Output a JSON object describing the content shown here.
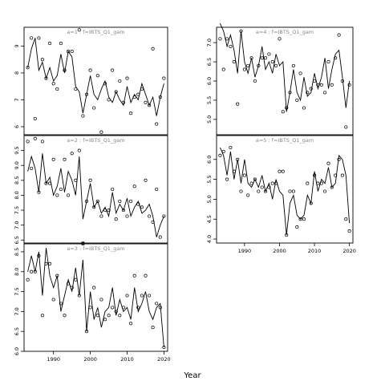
{
  "figure": {
    "xlabel": "Year"
  },
  "chart_data": [
    {
      "type": "line",
      "title": "a=1 : f=IBTS_Q1_gam",
      "xlim": [
        1982,
        2021
      ],
      "ylim": [
        5.7,
        9.7
      ],
      "yticks": [
        6,
        7,
        8,
        9
      ],
      "x": [
        1983,
        1984,
        1985,
        1986,
        1987,
        1988,
        1989,
        1990,
        1991,
        1992,
        1993,
        1994,
        1995,
        1996,
        1997,
        1998,
        1999,
        2000,
        2001,
        2002,
        2003,
        2004,
        2005,
        2006,
        2007,
        2008,
        2009,
        2010,
        2011,
        2012,
        2013,
        2014,
        2015,
        2016,
        2017,
        2018,
        2019,
        2020
      ],
      "series": [
        {
          "values": [
            8.2,
            8.9,
            9.3,
            8.1,
            8.4,
            7.8,
            8.2,
            7.7,
            7.9,
            8.7,
            8.0,
            8.8,
            8.6,
            7.5,
            7.3,
            6.5,
            7.2,
            7.9,
            7.2,
            7.0,
            7.4,
            7.7,
            7.1,
            6.9,
            7.3,
            7.0,
            6.8,
            7.5,
            6.9,
            7.2,
            7.0,
            7.6,
            7.2,
            6.8,
            7.1,
            6.4,
            7.1,
            7.6
          ]
        },
        {
          "values": [
            8.2,
            9.3,
            6.3,
            9.3,
            8.5,
            7.8,
            9.1,
            7.6,
            7.4,
            9.1,
            8.1,
            8.8,
            8.8,
            7.4,
            9.6,
            6.4,
            7.2,
            8.1,
            6.7,
            7.9,
            5.8,
            7.6,
            7.0,
            8.1,
            7.3,
            7.7,
            6.9,
            7.8,
            6.5,
            7.1,
            7.2,
            7.4,
            6.9,
            6.8,
            8.9,
            6.1,
            7.1,
            7.8
          ]
        }
      ],
      "grid": false
    },
    {
      "type": "line",
      "title": "a=2 : f=IBTS_Q1_gam",
      "xlim": [
        1982,
        2021
      ],
      "ylim": [
        6.4,
        10.0
      ],
      "yticks": [
        6.5,
        7.0,
        7.5,
        8.0,
        8.5,
        9.0,
        9.5
      ],
      "x": [
        1983,
        1984,
        1985,
        1986,
        1987,
        1988,
        1989,
        1990,
        1991,
        1992,
        1993,
        1994,
        1995,
        1996,
        1997,
        1998,
        1999,
        2000,
        2001,
        2002,
        2003,
        2004,
        2005,
        2006,
        2007,
        2008,
        2009,
        2010,
        2011,
        2012,
        2013,
        2014,
        2015,
        2016,
        2017,
        2018,
        2019,
        2020
      ],
      "series": [
        {
          "values": [
            8.8,
            9.3,
            8.9,
            8.1,
            9.4,
            8.4,
            8.6,
            8.0,
            8.3,
            8.9,
            8.1,
            8.8,
            8.5,
            8.0,
            9.3,
            7.2,
            7.8,
            8.4,
            7.6,
            7.8,
            7.4,
            7.6,
            7.3,
            8.1,
            7.4,
            7.7,
            7.5,
            7.9,
            7.3,
            7.6,
            7.8,
            7.4,
            7.5,
            7.7,
            7.3,
            6.6,
            7.0,
            7.3
          ]
        },
        {
          "values": [
            9.8,
            8.9,
            9.9,
            8.1,
            9.8,
            8.4,
            8.4,
            9.2,
            8.0,
            8.2,
            9.2,
            8.0,
            9.4,
            8.5,
            9.5,
            6.4,
            7.8,
            8.5,
            7.6,
            7.8,
            7.3,
            7.5,
            7.5,
            8.2,
            7.2,
            7.8,
            7.5,
            7.3,
            7.8,
            8.3,
            7.7,
            7.6,
            8.5,
            7.3,
            7.1,
            8.2,
            6.6,
            7.3
          ]
        }
      ],
      "grid": false
    },
    {
      "type": "line",
      "title": "a=3 : f=IBTS_Q1_gam",
      "xlim": [
        1982,
        2021
      ],
      "ylim": [
        6.0,
        8.7
      ],
      "yticks": [
        6.0,
        6.5,
        7.0,
        7.5,
        8.0,
        8.5
      ],
      "x": [
        1983,
        1984,
        1985,
        1986,
        1987,
        1988,
        1989,
        1990,
        1991,
        1992,
        1993,
        1994,
        1995,
        1996,
        1997,
        1998,
        1999,
        2000,
        2001,
        2002,
        2003,
        2004,
        2005,
        2006,
        2007,
        2008,
        2009,
        2010,
        2011,
        2012,
        2013,
        2014,
        2015,
        2016,
        2017,
        2018,
        2019,
        2020
      ],
      "series": [
        {
          "values": [
            8.0,
            8.4,
            8.0,
            8.5,
            7.4,
            8.6,
            7.9,
            7.6,
            7.9,
            7.0,
            7.4,
            7.8,
            7.5,
            8.1,
            7.4,
            8.3,
            6.5,
            7.5,
            6.8,
            7.1,
            6.6,
            7.0,
            7.1,
            7.6,
            6.9,
            7.3,
            7.0,
            7.1,
            6.8,
            7.6,
            7.0,
            7.2,
            7.5,
            7.0,
            6.8,
            7.1,
            7.2,
            6.1
          ]
        },
        {
          "values": [
            7.8,
            8.0,
            8.0,
            8.4,
            6.9,
            8.2,
            8.2,
            7.3,
            7.9,
            7.2,
            6.9,
            7.7,
            7.6,
            7.8,
            7.4,
            8.7,
            6.5,
            7.1,
            7.6,
            6.9,
            7.3,
            6.8,
            6.9,
            7.1,
            7.0,
            6.9,
            7.1,
            7.4,
            6.7,
            7.9,
            7.1,
            7.4,
            7.9,
            7.4,
            6.6,
            7.2,
            7.1,
            6.1
          ]
        }
      ],
      "grid": false
    },
    {
      "type": "line",
      "title": "a=4 : f=IBTS_Q1_gam",
      "xlim": [
        1982,
        2021
      ],
      "ylim": [
        4.6,
        7.4
      ],
      "yticks": [
        5.0,
        5.5,
        6.0,
        6.5,
        7.0
      ],
      "x": [
        1983,
        1984,
        1985,
        1986,
        1987,
        1988,
        1989,
        1990,
        1991,
        1992,
        1993,
        1994,
        1995,
        1996,
        1997,
        1998,
        1999,
        2000,
        2001,
        2002,
        2003,
        2004,
        2005,
        2006,
        2007,
        2008,
        2009,
        2010,
        2011,
        2012,
        2013,
        2014,
        2015,
        2016,
        2017,
        2018,
        2019,
        2020
      ],
      "series": [
        {
          "values": [
            7.5,
            7.3,
            6.9,
            7.2,
            6.8,
            6.2,
            7.3,
            6.5,
            6.2,
            6.6,
            6.1,
            6.4,
            6.9,
            6.3,
            6.5,
            6.2,
            6.7,
            6.4,
            6.5,
            5.2,
            5.7,
            6.3,
            5.7,
            5.5,
            6.1,
            5.6,
            5.7,
            6.2,
            5.8,
            6.1,
            6.6,
            5.8,
            6.3,
            6.7,
            6.8,
            6.1,
            5.3,
            6.0
          ]
        },
        {
          "values": [
            7.1,
            6.3,
            7.1,
            6.9,
            6.5,
            5.4,
            7.3,
            6.3,
            6.4,
            6.6,
            6.0,
            6.4,
            6.6,
            6.6,
            6.7,
            6.5,
            6.4,
            7.1,
            5.2,
            5.3,
            5.7,
            6.4,
            5.5,
            6.2,
            5.3,
            5.7,
            5.8,
            6.0,
            5.9,
            5.9,
            5.7,
            6.5,
            5.9,
            6.6,
            7.2,
            6.0,
            4.8,
            5.9
          ]
        }
      ],
      "grid": false
    },
    {
      "type": "line",
      "title": "a=5 : f=IBTS_Q1_gam",
      "xlim": [
        1982,
        2021
      ],
      "ylim": [
        3.9,
        6.6
      ],
      "yticks": [
        4.0,
        4.5,
        5.0,
        5.5,
        6.0
      ],
      "x": [
        1983,
        1984,
        1985,
        1986,
        1987,
        1988,
        1989,
        1990,
        1991,
        1992,
        1993,
        1994,
        1995,
        1996,
        1997,
        1998,
        1999,
        2000,
        2001,
        2002,
        2003,
        2004,
        2005,
        2006,
        2007,
        2008,
        2009,
        2010,
        2011,
        2012,
        2013,
        2014,
        2015,
        2016,
        2017,
        2018,
        2019,
        2020
      ],
      "series": [
        {
          "values": [
            6.3,
            6.1,
            5.6,
            6.2,
            5.5,
            6.0,
            5.4,
            6.0,
            5.4,
            5.3,
            5.5,
            5.3,
            5.6,
            5.2,
            5.4,
            5.0,
            5.5,
            5.2,
            5.1,
            4.1,
            4.9,
            5.1,
            4.6,
            4.5,
            4.6,
            5.1,
            4.9,
            5.7,
            5.2,
            5.5,
            5.4,
            5.8,
            5.3,
            5.4,
            6.1,
            6.0,
            5.6,
            4.4
          ]
        },
        {
          "values": [
            6.1,
            6.2,
            5.5,
            6.3,
            5.7,
            6.0,
            5.2,
            5.6,
            5.1,
            5.4,
            5.5,
            5.2,
            5.3,
            5.2,
            5.3,
            5.4,
            5.4,
            5.7,
            5.7,
            4.1,
            5.2,
            5.2,
            4.3,
            4.5,
            4.5,
            5.4,
            4.9,
            5.6,
            5.4,
            5.4,
            5.2,
            5.9,
            5.3,
            5.6,
            6.0,
            5.6,
            4.5,
            4.2
          ]
        }
      ],
      "grid": false
    }
  ]
}
